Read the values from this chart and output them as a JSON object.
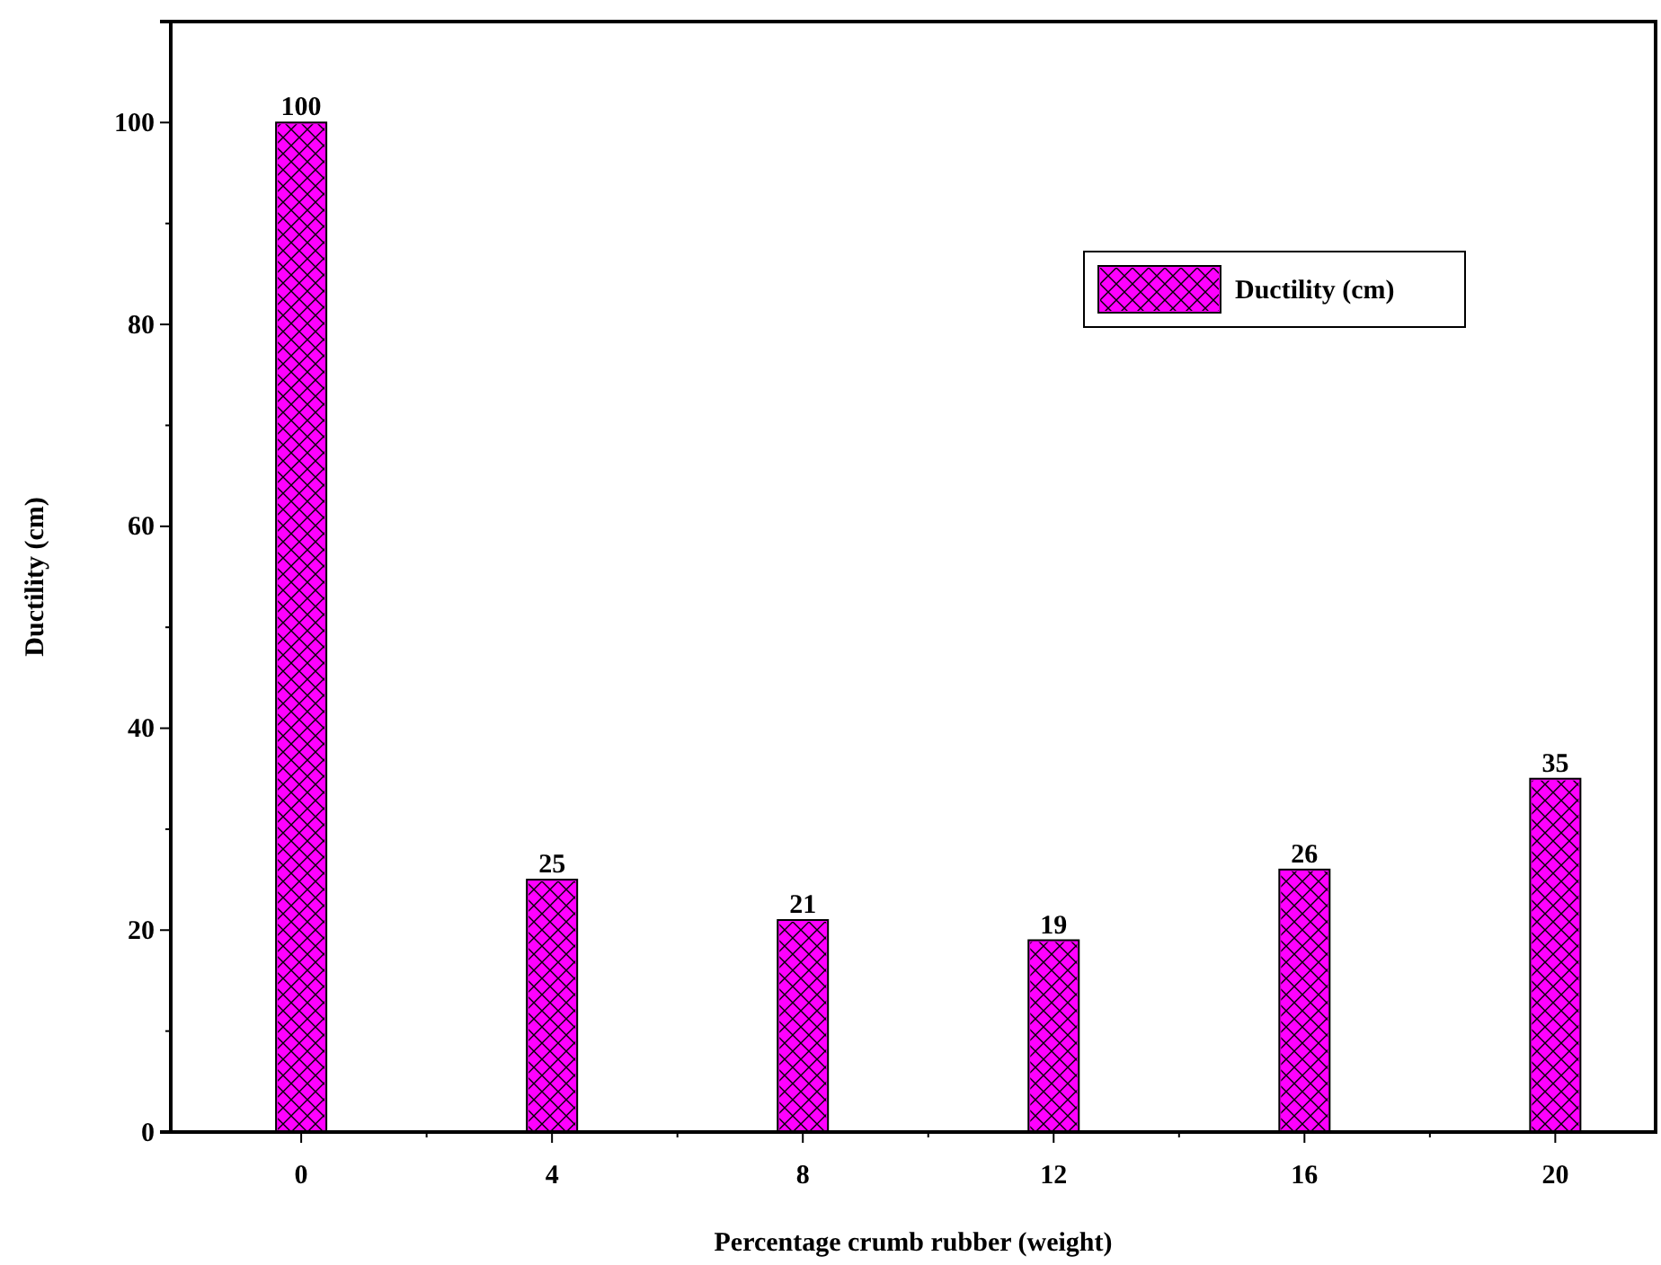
{
  "chart_data": {
    "type": "bar",
    "xlabel": "Percentage crumb rubber (weight)",
    "ylabel": "Ductility (cm)",
    "categories": [
      "0",
      "4",
      "8",
      "12",
      "16",
      "20"
    ],
    "series": [
      {
        "name": "Ductility (cm)",
        "color": "#ff00ff",
        "values": [
          100,
          25,
          21,
          19,
          26,
          35
        ]
      }
    ],
    "ylim": [
      0,
      110
    ],
    "yticks": [
      0,
      20,
      40,
      60,
      80,
      100
    ],
    "data_labels": true,
    "legend": "top right",
    "grid": false
  }
}
